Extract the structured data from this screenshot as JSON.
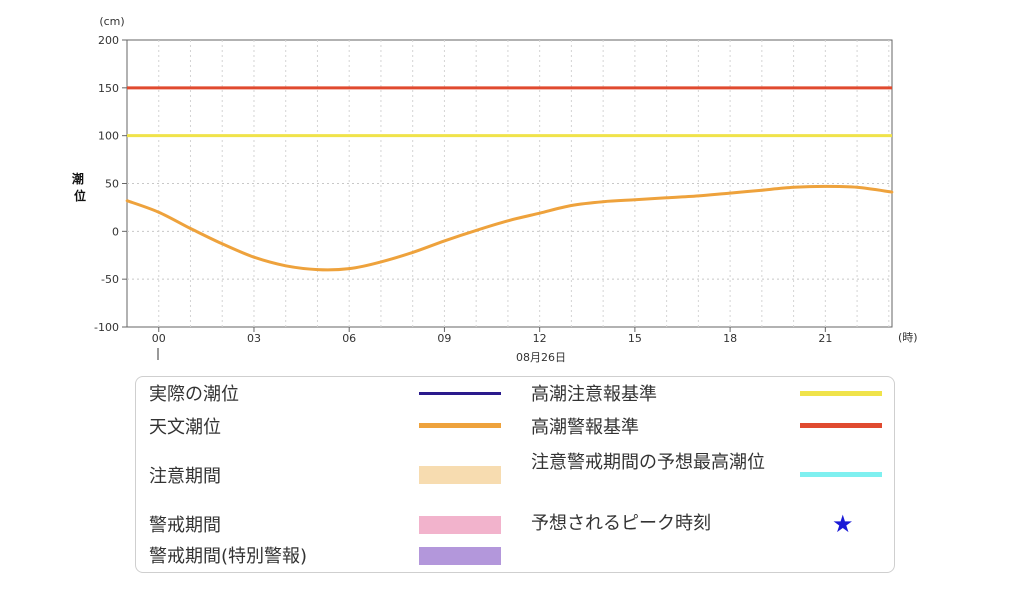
{
  "chart_data": {
    "type": "line",
    "title": "",
    "ylabel": "潮位",
    "y_unit": "(cm)",
    "x_unit": "(時)",
    "ylim": [
      -100,
      200
    ],
    "y_ticks": [
      200,
      150,
      100,
      50,
      0,
      -50,
      -100
    ],
    "x_ticks": [
      "00",
      "03",
      "06",
      "09",
      "12",
      "15",
      "18",
      "21"
    ],
    "x_hour_range": [
      -1,
      23.1
    ],
    "date_label": "08月26日",
    "grid": true,
    "thresholds": [
      {
        "name": "高潮警報基準",
        "value": 150,
        "color": "#e04a2f"
      },
      {
        "name": "高潮注意報基準",
        "value": 100,
        "color": "#f0e34a"
      }
    ],
    "series": [
      {
        "name": "天文潮位",
        "color": "#eea23c",
        "x": [
          -1,
          0,
          1,
          2,
          3,
          4,
          5,
          6,
          7,
          8,
          9,
          10,
          11,
          12,
          13,
          14,
          15,
          16,
          17,
          18,
          19,
          20,
          21,
          22,
          23.1
        ],
        "y": [
          32,
          20,
          3,
          -13,
          -27,
          -36,
          -40,
          -39,
          -32,
          -22,
          -10,
          1,
          11,
          19,
          27,
          31,
          33,
          35,
          37,
          40,
          43,
          46,
          47,
          46,
          41
        ]
      }
    ]
  },
  "legend": {
    "items": [
      {
        "label": "実際の潮位",
        "color": "#2a1a8c",
        "kind": "line"
      },
      {
        "label": "天文潮位",
        "color": "#eea23c",
        "kind": "line"
      },
      {
        "label": "注意期間",
        "color": "#f7dcb0",
        "kind": "band"
      },
      {
        "label": "警戒期間",
        "color": "#f2b3cc",
        "kind": "band"
      },
      {
        "label": "警戒期間(特別警報)",
        "color": "#b397db",
        "kind": "band"
      },
      {
        "label": "高潮注意報基準",
        "color": "#f0e34a",
        "kind": "line"
      },
      {
        "label": "高潮警報基準",
        "color": "#e04a2f",
        "kind": "line"
      },
      {
        "label": "注意警戒期間の予想最高潮位",
        "color": "#7ff0f0",
        "kind": "line"
      },
      {
        "label": "予想されるピーク時刻",
        "color": "#1a1ad6",
        "kind": "star",
        "icon": "star-icon"
      }
    ]
  }
}
